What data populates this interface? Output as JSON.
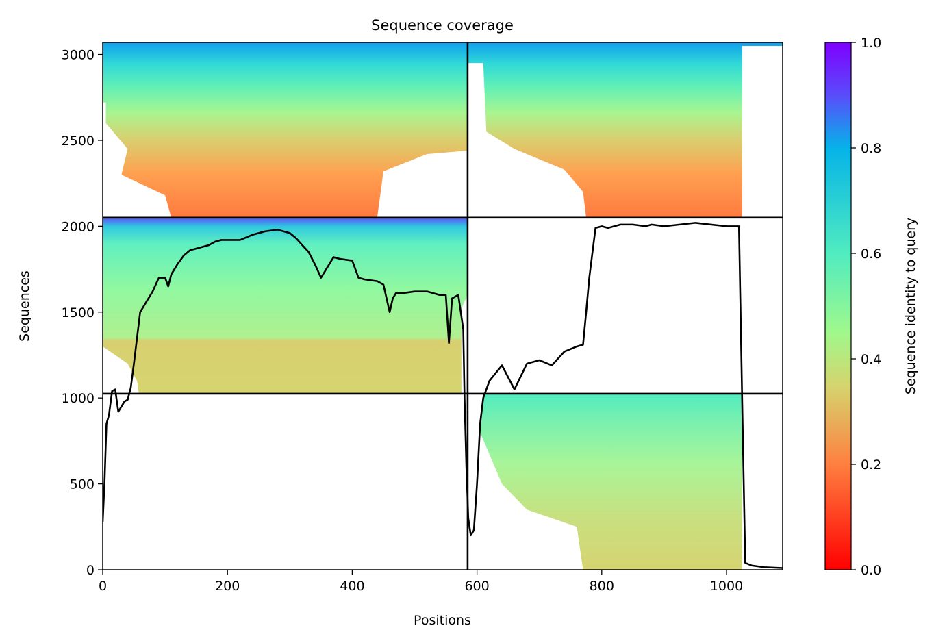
{
  "chart_data": {
    "type": "heatmap",
    "title": "Sequence coverage",
    "xlabel": "Positions",
    "ylabel": "Sequences",
    "xlim": [
      0,
      1090
    ],
    "ylim": [
      0,
      3070
    ],
    "xticks": [
      0,
      200,
      400,
      600,
      800,
      1000
    ],
    "yticks": [
      0,
      500,
      1000,
      1500,
      2000,
      2500,
      3000
    ],
    "colorbar": {
      "label": "Sequence identity to query",
      "range": [
        0,
        1
      ],
      "ticks": [
        0.0,
        0.2,
        0.4,
        0.6,
        0.8,
        1.0
      ],
      "colormap": "rainbow",
      "colors": [
        "#ff0000",
        "#ff7f40",
        "#d4d56e",
        "#a0f88c",
        "#50ecc0",
        "#05b3e8",
        "#5a4cfb",
        "#7f00ff"
      ]
    },
    "divider_lines": {
      "x": [
        585
      ],
      "y": [
        1025,
        2050
      ]
    },
    "blocks": [
      {
        "name": "upper-left",
        "x_range": [
          0,
          585
        ],
        "y_range": [
          2050,
          3070
        ],
        "identity_range": [
          0.15,
          0.85
        ]
      },
      {
        "name": "upper-right",
        "x_range": [
          585,
          1090
        ],
        "y_range": [
          2050,
          3070
        ],
        "identity_range": [
          0.15,
          0.85
        ]
      },
      {
        "name": "middle-left",
        "x_range": [
          0,
          585
        ],
        "y_range": [
          1025,
          2050
        ],
        "identity_range": [
          0.3,
          0.9
        ]
      },
      {
        "name": "lower-right",
        "x_range": [
          585,
          1090
        ],
        "y_range": [
          0,
          1025
        ],
        "identity_range": [
          0.3,
          0.6
        ]
      }
    ],
    "series": [
      {
        "type": "line",
        "x": [
          0,
          3,
          6,
          10,
          15,
          20,
          25,
          30,
          35,
          40,
          45,
          50,
          55,
          60,
          65,
          70,
          80,
          90,
          100,
          105,
          110,
          120,
          130,
          140,
          150,
          160,
          170,
          180,
          190,
          200,
          220,
          240,
          260,
          280,
          300,
          310,
          320,
          330,
          340,
          350,
          360,
          370,
          380,
          400,
          410,
          420,
          440,
          450,
          460,
          465,
          470,
          480,
          500,
          520,
          540,
          550,
          555,
          560,
          570,
          578,
          580,
          583,
          586,
          590,
          595,
          600,
          605,
          610,
          620,
          640,
          660,
          680,
          700,
          720,
          740,
          760,
          770,
          775,
          780,
          790,
          800,
          810,
          830,
          850,
          870,
          880,
          900,
          950,
          1000,
          1020,
          1025,
          1030,
          1040,
          1060,
          1090
        ],
        "y": [
          280,
          520,
          850,
          900,
          1040,
          1050,
          920,
          950,
          980,
          990,
          1060,
          1200,
          1350,
          1500,
          1530,
          1560,
          1620,
          1700,
          1700,
          1650,
          1720,
          1780,
          1830,
          1860,
          1870,
          1880,
          1890,
          1910,
          1920,
          1920,
          1920,
          1950,
          1970,
          1980,
          1960,
          1930,
          1890,
          1850,
          1780,
          1700,
          1760,
          1820,
          1810,
          1800,
          1700,
          1690,
          1680,
          1660,
          1500,
          1580,
          1610,
          1610,
          1620,
          1620,
          1600,
          1600,
          1320,
          1580,
          1600,
          1400,
          1000,
          600,
          300,
          200,
          230,
          500,
          850,
          1000,
          1100,
          1190,
          1050,
          1200,
          1220,
          1190,
          1270,
          1300,
          1310,
          1500,
          1700,
          1990,
          2000,
          1990,
          2010,
          2010,
          2000,
          2010,
          2000,
          2020,
          2000,
          2000,
          1000,
          40,
          25,
          15,
          10
        ]
      }
    ]
  }
}
